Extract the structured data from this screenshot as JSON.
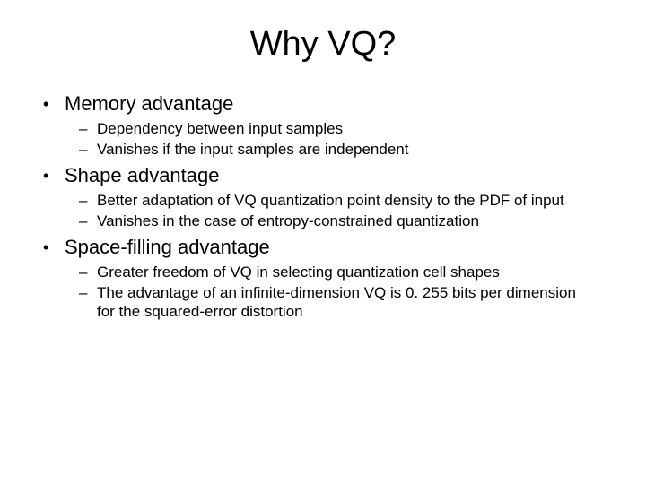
{
  "title": "Why VQ?",
  "colors": {
    "background": "#ffffff",
    "text": "#000000"
  },
  "typography": {
    "title_fontsize": 38,
    "bullet_fontsize": 22,
    "sub_fontsize": 17,
    "font_family": "Arial"
  },
  "bullets": [
    {
      "text": "Memory advantage",
      "sub": [
        "Dependency between input samples",
        "Vanishes if the input samples are independent"
      ]
    },
    {
      "text": "Shape advantage",
      "sub": [
        "Better adaptation of VQ quantization point density to the PDF of input",
        "Vanishes in the case of entropy-constrained quantization"
      ]
    },
    {
      "text": "Space-filling advantage",
      "sub": [
        "Greater freedom of VQ in selecting quantization cell shapes",
        "The advantage of an infinite-dimension VQ is 0. 255 bits per dimension for the squared-error distortion"
      ]
    }
  ],
  "markers": {
    "level1": "•",
    "level2": "–"
  }
}
